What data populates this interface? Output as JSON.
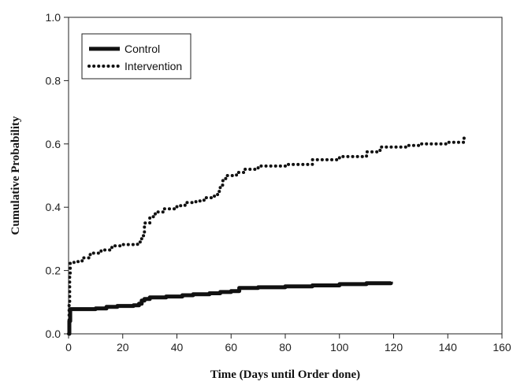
{
  "chart_data": {
    "type": "line",
    "title": "",
    "xlabel": "Time (Days until Order done)",
    "ylabel": "Cumulative Probability",
    "xlim": [
      0,
      160
    ],
    "ylim": [
      0,
      1.0
    ],
    "xticks": [
      0,
      20,
      40,
      60,
      80,
      100,
      120,
      140,
      160
    ],
    "yticks": [
      0.0,
      0.2,
      0.4,
      0.6,
      0.8,
      1.0
    ],
    "xtick_labels": [
      "0",
      "20",
      "40",
      "60",
      "80",
      "100",
      "120",
      "140",
      "160"
    ],
    "ytick_labels": [
      "0.0",
      "0.2",
      "0.4",
      "0.6",
      "0.8",
      "1.0"
    ],
    "grid": false,
    "legend_position": "top-left",
    "series": [
      {
        "name": "Control",
        "style": "solid",
        "color": "#111111",
        "points": [
          [
            0,
            0
          ],
          [
            0.3,
            0.04
          ],
          [
            0.6,
            0.078
          ],
          [
            5,
            0.078
          ],
          [
            10,
            0.08
          ],
          [
            14,
            0.085
          ],
          [
            18,
            0.088
          ],
          [
            24,
            0.09
          ],
          [
            26,
            0.095
          ],
          [
            27,
            0.105
          ],
          [
            28,
            0.11
          ],
          [
            30,
            0.115
          ],
          [
            36,
            0.118
          ],
          [
            42,
            0.122
          ],
          [
            46,
            0.125
          ],
          [
            52,
            0.128
          ],
          [
            56,
            0.132
          ],
          [
            60,
            0.135
          ],
          [
            63,
            0.145
          ],
          [
            70,
            0.147
          ],
          [
            80,
            0.15
          ],
          [
            90,
            0.153
          ],
          [
            100,
            0.157
          ],
          [
            110,
            0.16
          ],
          [
            119,
            0.165
          ]
        ]
      },
      {
        "name": "Intervention",
        "style": "dotted",
        "color": "#111111",
        "points": [
          [
            0,
            0
          ],
          [
            0.2,
            0.1
          ],
          [
            0.4,
            0.18
          ],
          [
            0.6,
            0.225
          ],
          [
            2,
            0.228
          ],
          [
            5,
            0.24
          ],
          [
            8,
            0.255
          ],
          [
            12,
            0.265
          ],
          [
            16,
            0.278
          ],
          [
            20,
            0.282
          ],
          [
            24,
            0.283
          ],
          [
            26,
            0.29
          ],
          [
            27,
            0.31
          ],
          [
            28,
            0.35
          ],
          [
            30,
            0.37
          ],
          [
            32,
            0.385
          ],
          [
            35,
            0.395
          ],
          [
            40,
            0.405
          ],
          [
            43,
            0.415
          ],
          [
            47,
            0.42
          ],
          [
            50,
            0.43
          ],
          [
            53,
            0.435
          ],
          [
            54,
            0.44
          ],
          [
            55,
            0.45
          ],
          [
            56,
            0.47
          ],
          [
            57,
            0.49
          ],
          [
            58,
            0.5
          ],
          [
            62,
            0.51
          ],
          [
            65,
            0.52
          ],
          [
            70,
            0.53
          ],
          [
            80,
            0.535
          ],
          [
            90,
            0.55
          ],
          [
            100,
            0.56
          ],
          [
            110,
            0.575
          ],
          [
            115,
            0.59
          ],
          [
            125,
            0.595
          ],
          [
            130,
            0.6
          ],
          [
            140,
            0.605
          ],
          [
            146,
            0.605
          ],
          [
            146,
            0.63
          ]
        ]
      }
    ]
  }
}
